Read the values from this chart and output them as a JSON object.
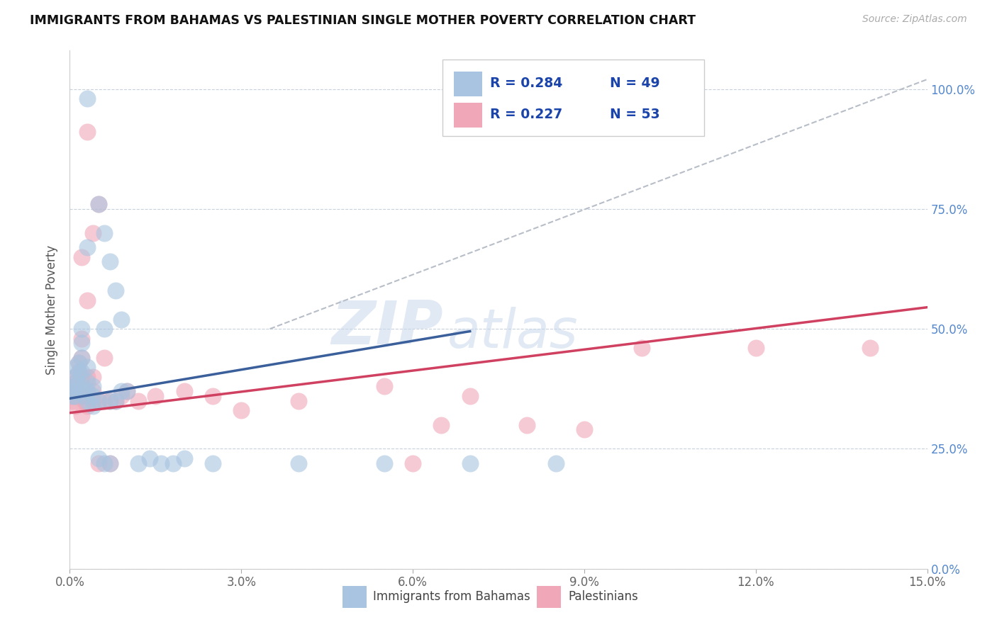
{
  "title": "IMMIGRANTS FROM BAHAMAS VS PALESTINIAN SINGLE MOTHER POVERTY CORRELATION CHART",
  "source": "Source: ZipAtlas.com",
  "ylabel": "Single Mother Poverty",
  "legend_blue_label": "Immigrants from Bahamas",
  "legend_pink_label": "Palestinians",
  "watermark_zip": "ZIP",
  "watermark_atlas": "atlas",
  "blue_color": "#a8c4e0",
  "pink_color": "#f0a8b8",
  "blue_line_color": "#3a5f9a",
  "pink_line_color": "#d04060",
  "dashed_line_color": "#b8bec8",
  "legend_r1": "R = 0.284",
  "legend_n1": "N = 49",
  "legend_r2": "R = 0.227",
  "legend_n2": "N = 53",
  "blue_scatter_x": [
    0.0005,
    0.0007,
    0.0008,
    0.001,
    0.001,
    0.001,
    0.001,
    0.0012,
    0.0015,
    0.0015,
    0.002,
    0.002,
    0.002,
    0.002,
    0.002,
    0.0025,
    0.003,
    0.003,
    0.003,
    0.003,
    0.004,
    0.004,
    0.004,
    0.005,
    0.005,
    0.006,
    0.006,
    0.007,
    0.007,
    0.008,
    0.009,
    0.01,
    0.012,
    0.014,
    0.016,
    0.018,
    0.02,
    0.025,
    0.003,
    0.005,
    0.006,
    0.007,
    0.008,
    0.009,
    0.04,
    0.055,
    0.07,
    0.085,
    0.003
  ],
  "blue_scatter_y": [
    0.36,
    0.37,
    0.37,
    0.42,
    0.4,
    0.38,
    0.36,
    0.39,
    0.43,
    0.41,
    0.5,
    0.47,
    0.44,
    0.41,
    0.38,
    0.36,
    0.35,
    0.37,
    0.39,
    0.42,
    0.34,
    0.36,
    0.38,
    0.35,
    0.23,
    0.22,
    0.5,
    0.35,
    0.22,
    0.35,
    0.37,
    0.37,
    0.22,
    0.23,
    0.22,
    0.22,
    0.23,
    0.22,
    0.67,
    0.76,
    0.7,
    0.64,
    0.58,
    0.52,
    0.22,
    0.22,
    0.22,
    0.22,
    0.98
  ],
  "pink_scatter_x": [
    0.0005,
    0.0006,
    0.0007,
    0.0008,
    0.001,
    0.001,
    0.001,
    0.001,
    0.0012,
    0.0015,
    0.0015,
    0.002,
    0.002,
    0.002,
    0.002,
    0.002,
    0.0025,
    0.003,
    0.003,
    0.003,
    0.003,
    0.004,
    0.004,
    0.004,
    0.005,
    0.005,
    0.006,
    0.006,
    0.007,
    0.007,
    0.008,
    0.009,
    0.01,
    0.012,
    0.015,
    0.02,
    0.025,
    0.002,
    0.003,
    0.004,
    0.005,
    0.03,
    0.04,
    0.055,
    0.06,
    0.065,
    0.07,
    0.08,
    0.09,
    0.1,
    0.12,
    0.14,
    0.003
  ],
  "pink_scatter_y": [
    0.35,
    0.36,
    0.37,
    0.38,
    0.4,
    0.38,
    0.36,
    0.34,
    0.39,
    0.43,
    0.41,
    0.48,
    0.44,
    0.4,
    0.36,
    0.32,
    0.35,
    0.34,
    0.37,
    0.4,
    0.36,
    0.35,
    0.37,
    0.4,
    0.35,
    0.22,
    0.35,
    0.44,
    0.35,
    0.22,
    0.35,
    0.36,
    0.37,
    0.35,
    0.36,
    0.37,
    0.36,
    0.65,
    0.56,
    0.7,
    0.76,
    0.33,
    0.35,
    0.38,
    0.22,
    0.3,
    0.36,
    0.3,
    0.29,
    0.46,
    0.46,
    0.46,
    0.91
  ],
  "xlim": [
    0.0,
    0.15
  ],
  "ylim": [
    0.0,
    1.08
  ],
  "x_ticks": [
    0.0,
    0.03,
    0.06,
    0.09,
    0.12,
    0.15
  ],
  "y_ticks": [
    0.0,
    0.25,
    0.5,
    0.75,
    1.0
  ],
  "x_tick_labels": [
    "0.0%",
    "3.0%",
    "6.0%",
    "9.0%",
    "12.0%",
    "15.0%"
  ],
  "y_tick_labels_right": [
    "0.0%",
    "25.0%",
    "50.0%",
    "75.0%",
    "100.0%"
  ],
  "blue_line_x": [
    0.0,
    0.07
  ],
  "blue_line_y": [
    0.355,
    0.495
  ],
  "pink_line_x": [
    0.0,
    0.15
  ],
  "pink_line_y": [
    0.325,
    0.545
  ],
  "dash_line_x": [
    0.035,
    0.15
  ],
  "dash_line_y": [
    0.5,
    1.02
  ]
}
